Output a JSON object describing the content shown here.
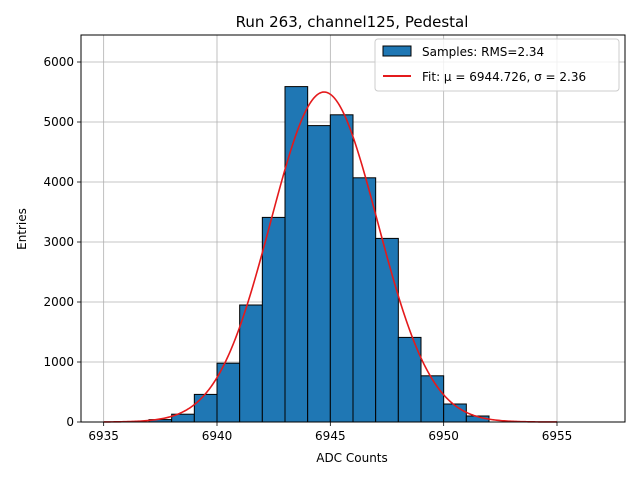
{
  "chart_data": {
    "type": "bar",
    "title": "Run 263, channel125, Pedestal",
    "xlabel": "ADC Counts",
    "ylabel": "Entries",
    "xlim": [
      6934,
      6958
    ],
    "ylim": [
      0,
      6450
    ],
    "xticks": [
      6935,
      6940,
      6945,
      6950,
      6955
    ],
    "yticks": [
      0,
      1000,
      2000,
      3000,
      4000,
      5000,
      6000
    ],
    "grid": true,
    "legend_position": "top-right",
    "colors": {
      "bars": "#1f77b4",
      "bar_edge": "#000000",
      "fit": "#e41a1c"
    },
    "histogram": {
      "name": "Samples: RMS=2.34",
      "bin_width": 1,
      "bin_starts": [
        6937,
        6938,
        6939,
        6940,
        6941,
        6942,
        6943,
        6944,
        6945,
        6946,
        6947,
        6948,
        6949,
        6950,
        6951
      ],
      "values": [
        40,
        130,
        460,
        980,
        1950,
        3410,
        5590,
        4940,
        5120,
        4070,
        3060,
        1410,
        770,
        300,
        100
      ]
    },
    "fit": {
      "name": "Fit: μ = 6944.726, σ = 2.36",
      "mu": 6944.726,
      "sigma": 2.36,
      "amplitude": 5500,
      "x_range": [
        6935,
        6955
      ]
    }
  }
}
